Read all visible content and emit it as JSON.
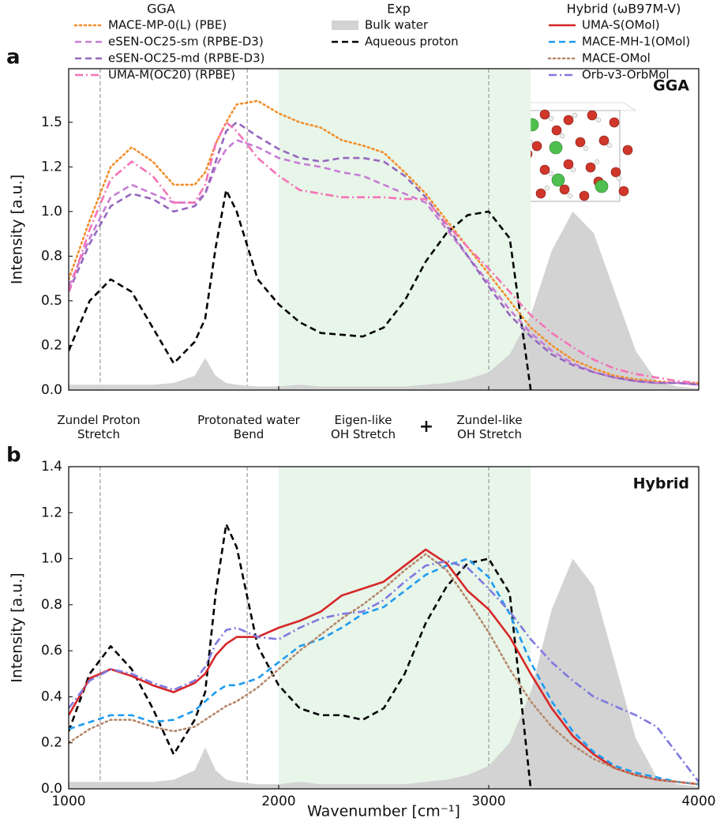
{
  "legend_titles": [
    "GGA",
    "Exp",
    "Hybrid (ωB97M-V)"
  ],
  "annotations": [
    "Zundel Proton\nStretch",
    "Protonated water\nBend",
    "Eigen-like\nOH Stretch",
    "+",
    "Zundel-like\nOH Stretch"
  ],
  "chart_data": [
    {
      "type": "line",
      "panel": "a",
      "title": "GGA",
      "ylabel": "Intensity [a.u.]",
      "xlim": [
        1000,
        4000
      ],
      "xticks": [
        1000,
        2000,
        3000,
        4000
      ],
      "xtick_labels": false,
      "ylim": [
        0,
        1.8
      ],
      "yticks": [
        {
          "value": 0,
          "label": "0.0"
        },
        {
          "value": 0.25,
          "label": "0.2"
        },
        0.5,
        {
          "value": 0.75,
          "label": "0.8"
        },
        {
          "value": 1,
          "label": "1.0"
        },
        {
          "value": 1.25,
          "label": "1.2"
        },
        1.5
      ],
      "span": [
        2000,
        3200
      ],
      "span_color": "#e8f5e9",
      "vlines": [
        1150,
        1850,
        3000
      ],
      "x": [
        1000,
        1100,
        1200,
        1300,
        1400,
        1500,
        1600,
        1650,
        1700,
        1750,
        1800,
        1900,
        2000,
        2100,
        2200,
        2300,
        2400,
        2500,
        2600,
        2700,
        2800,
        2900,
        3000,
        3100,
        3200,
        3300,
        3400,
        3500,
        3600,
        3700,
        3800,
        3900,
        4000
      ],
      "series": [
        {
          "name": "Bulk water",
          "color": "#d3d3d3",
          "style": "fill",
          "values": [
            0.03,
            0.03,
            0.03,
            0.03,
            0.03,
            0.04,
            0.08,
            0.18,
            0.08,
            0.04,
            0.03,
            0.02,
            0.02,
            0.03,
            0.02,
            0.02,
            0.02,
            0.02,
            0.02,
            0.03,
            0.04,
            0.06,
            0.1,
            0.2,
            0.42,
            0.78,
            1.0,
            0.88,
            0.55,
            0.22,
            0.05,
            0.02,
            0.01
          ]
        },
        {
          "name": "Aqueous proton",
          "color": "#000000",
          "style": "dashed",
          "values": [
            0.22,
            0.5,
            0.62,
            0.55,
            0.35,
            0.15,
            0.27,
            0.4,
            0.8,
            1.12,
            1.0,
            0.62,
            0.48,
            0.38,
            0.32,
            0.31,
            0.3,
            0.35,
            0.5,
            0.72,
            0.88,
            0.98,
            1.0,
            0.85,
            0.0,
            null,
            null,
            null,
            null,
            null,
            null,
            null,
            null
          ]
        },
        {
          "name": "MACE-MP-0(L) (PBE)",
          "color": "#f28e2b",
          "style": "dotted",
          "values": [
            0.62,
            0.95,
            1.25,
            1.36,
            1.28,
            1.15,
            1.15,
            1.22,
            1.38,
            1.5,
            1.6,
            1.62,
            1.55,
            1.5,
            1.47,
            1.4,
            1.37,
            1.33,
            1.22,
            1.1,
            0.95,
            0.8,
            0.65,
            0.5,
            0.35,
            0.25,
            0.17,
            0.12,
            0.08,
            0.06,
            0.05,
            0.04,
            0.04
          ]
        },
        {
          "name": "eSEN-OC25-sm (RPBE-D3)",
          "color": "#c77cd6",
          "style": "dashed",
          "values": [
            0.58,
            0.85,
            1.08,
            1.15,
            1.1,
            1.05,
            1.05,
            1.1,
            1.25,
            1.35,
            1.4,
            1.36,
            1.3,
            1.27,
            1.25,
            1.22,
            1.2,
            1.15,
            1.1,
            1.05,
            0.9,
            0.75,
            0.6,
            0.45,
            0.32,
            0.22,
            0.15,
            0.1,
            0.07,
            0.05,
            0.04,
            0.04,
            0.03
          ]
        },
        {
          "name": "eSEN-OC25-md (RPBE-D3)",
          "color": "#9467bd",
          "style": "dashed",
          "values": [
            0.55,
            0.82,
            1.03,
            1.1,
            1.07,
            1.0,
            1.03,
            1.1,
            1.28,
            1.45,
            1.5,
            1.42,
            1.35,
            1.3,
            1.28,
            1.3,
            1.3,
            1.28,
            1.2,
            1.08,
            0.92,
            0.75,
            0.58,
            0.42,
            0.3,
            0.2,
            0.14,
            0.1,
            0.07,
            0.05,
            0.04,
            0.04,
            0.03
          ]
        },
        {
          "name": "UMA-M(OC20) (RPBE)",
          "color": "#f472b6",
          "style": "dashdot",
          "values": [
            0.55,
            0.9,
            1.18,
            1.28,
            1.2,
            1.05,
            1.05,
            1.15,
            1.38,
            1.5,
            1.45,
            1.3,
            1.2,
            1.12,
            1.1,
            1.08,
            1.08,
            1.08,
            1.07,
            1.07,
            0.93,
            0.8,
            0.68,
            0.55,
            0.42,
            0.32,
            0.24,
            0.17,
            0.12,
            0.09,
            0.07,
            0.05,
            0.04
          ]
        }
      ]
    },
    {
      "type": "line",
      "panel": "b",
      "title": "Hybrid",
      "ylabel": "Intensity [a.u.]",
      "xlabel": "Wavenumber [cm⁻¹]",
      "xlim": [
        1000,
        4000
      ],
      "xticks": [
        1000,
        2000,
        3000,
        4000
      ],
      "ylim": [
        0,
        1.4
      ],
      "yticks": [
        {
          "value": 0,
          "label": "0.0"
        },
        0.2,
        0.4,
        0.6,
        0.8,
        {
          "value": 1,
          "label": "1.0"
        },
        1.2,
        1.4
      ],
      "span": [
        2000,
        3200
      ],
      "span_color": "#e8f5e9",
      "vlines": [
        1150,
        1850,
        3000
      ],
      "x": [
        1000,
        1100,
        1200,
        1300,
        1400,
        1500,
        1600,
        1650,
        1700,
        1750,
        1800,
        1900,
        2000,
        2100,
        2200,
        2300,
        2400,
        2500,
        2600,
        2700,
        2800,
        2900,
        3000,
        3100,
        3200,
        3300,
        3400,
        3500,
        3600,
        3700,
        3800,
        3900,
        4000
      ],
      "series": [
        {
          "name": "Bulk water",
          "color": "#d3d3d3",
          "style": "fill",
          "values": [
            0.03,
            0.03,
            0.03,
            0.03,
            0.03,
            0.04,
            0.08,
            0.18,
            0.08,
            0.04,
            0.03,
            0.02,
            0.02,
            0.03,
            0.02,
            0.02,
            0.02,
            0.02,
            0.02,
            0.03,
            0.04,
            0.06,
            0.1,
            0.2,
            0.42,
            0.78,
            1.0,
            0.88,
            0.55,
            0.22,
            0.05,
            0.02,
            0.01
          ]
        },
        {
          "name": "Aqueous proton",
          "color": "#000000",
          "style": "dashed",
          "values": [
            0.25,
            0.5,
            0.62,
            0.52,
            0.35,
            0.15,
            0.3,
            0.42,
            0.85,
            1.15,
            1.05,
            0.62,
            0.45,
            0.35,
            0.32,
            0.32,
            0.3,
            0.35,
            0.5,
            0.72,
            0.88,
            0.98,
            1.0,
            0.85,
            0.0,
            null,
            null,
            null,
            null,
            null,
            null,
            null,
            null
          ]
        },
        {
          "name": "UMA-S(OMol)",
          "color": "#d62728",
          "style": "solid",
          "values": [
            0.32,
            0.48,
            0.52,
            0.49,
            0.45,
            0.42,
            0.46,
            0.5,
            0.58,
            0.63,
            0.66,
            0.66,
            0.7,
            0.73,
            0.77,
            0.84,
            0.87,
            0.9,
            0.97,
            1.04,
            0.98,
            0.86,
            0.78,
            0.66,
            0.5,
            0.35,
            0.23,
            0.15,
            0.09,
            0.06,
            0.04,
            0.03,
            0.02
          ]
        },
        {
          "name": "MACE-MH-1(OMol)",
          "color": "#1f9bf0",
          "style": "dashed",
          "values": [
            0.26,
            0.29,
            0.32,
            0.32,
            0.29,
            0.3,
            0.34,
            0.38,
            0.42,
            0.45,
            0.45,
            0.48,
            0.55,
            0.62,
            0.65,
            0.7,
            0.76,
            0.79,
            0.86,
            0.93,
            0.97,
            1.0,
            0.92,
            0.76,
            0.55,
            0.38,
            0.25,
            0.16,
            0.1,
            0.07,
            0.05,
            0.03,
            0.02
          ]
        },
        {
          "name": "MACE-OMol",
          "color": "#b5896b",
          "style": "dotted",
          "values": [
            0.2,
            0.26,
            0.3,
            0.3,
            0.27,
            0.25,
            0.27,
            0.3,
            0.33,
            0.36,
            0.38,
            0.44,
            0.52,
            0.6,
            0.67,
            0.74,
            0.8,
            0.87,
            0.95,
            1.02,
            0.95,
            0.82,
            0.68,
            0.52,
            0.38,
            0.27,
            0.19,
            0.13,
            0.09,
            0.06,
            0.04,
            0.03,
            0.02
          ]
        },
        {
          "name": "Orb-v3-OrbMol",
          "color": "#8079e0",
          "style": "dashdot",
          "values": [
            0.35,
            0.47,
            0.52,
            0.5,
            0.46,
            0.43,
            0.47,
            0.53,
            0.63,
            0.69,
            0.7,
            0.66,
            0.65,
            0.7,
            0.74,
            0.76,
            0.77,
            0.82,
            0.9,
            0.97,
            0.99,
            0.96,
            0.87,
            0.77,
            0.65,
            0.55,
            0.47,
            0.4,
            0.36,
            0.32,
            0.27,
            0.15,
            0.03
          ]
        }
      ]
    }
  ]
}
